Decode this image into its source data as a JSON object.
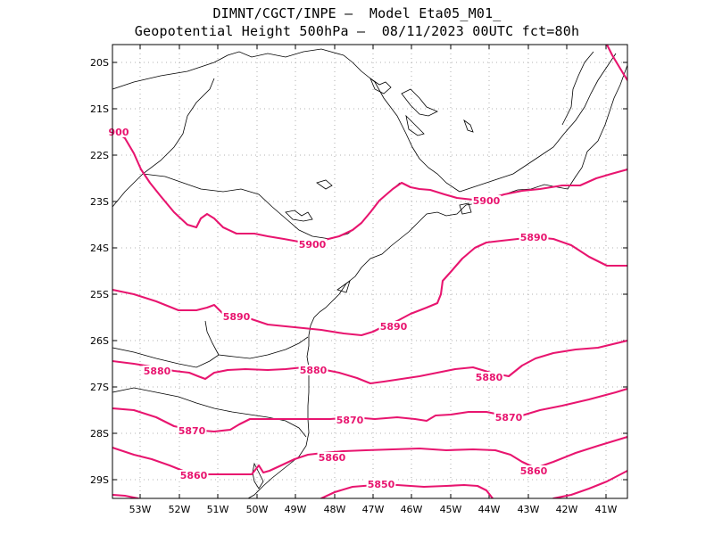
{
  "header": {
    "line1": "DIMNT/CGCT/INPE —  Model Eta05_M01_",
    "line2": "Geopotential Height 500hPa —  08/11/2023 00UTC fct=80h"
  },
  "axes": {
    "lat_ticks": [
      "20S",
      "21S",
      "22S",
      "23S",
      "24S",
      "25S",
      "26S",
      "27S",
      "28S",
      "29S"
    ],
    "lon_ticks": [
      "53W",
      "52W",
      "51W",
      "50W",
      "49W",
      "48W",
      "47W",
      "46W",
      "45W",
      "44W",
      "43W",
      "42W",
      "41W"
    ]
  },
  "colors": {
    "contour": "#e8156f",
    "border": "#000000",
    "grid": "#9a9a9a"
  },
  "contour_labels": [
    {
      "text": "900"
    },
    {
      "text": "5900"
    },
    {
      "text": "5900"
    },
    {
      "text": "5890"
    },
    {
      "text": "5890"
    },
    {
      "text": "5890"
    },
    {
      "text": "5880"
    },
    {
      "text": "5880"
    },
    {
      "text": "5880"
    },
    {
      "text": "5870"
    },
    {
      "text": "5870"
    },
    {
      "text": "5870"
    },
    {
      "text": "5860"
    },
    {
      "text": "5860"
    },
    {
      "text": "5860"
    },
    {
      "text": "5850"
    }
  ]
}
